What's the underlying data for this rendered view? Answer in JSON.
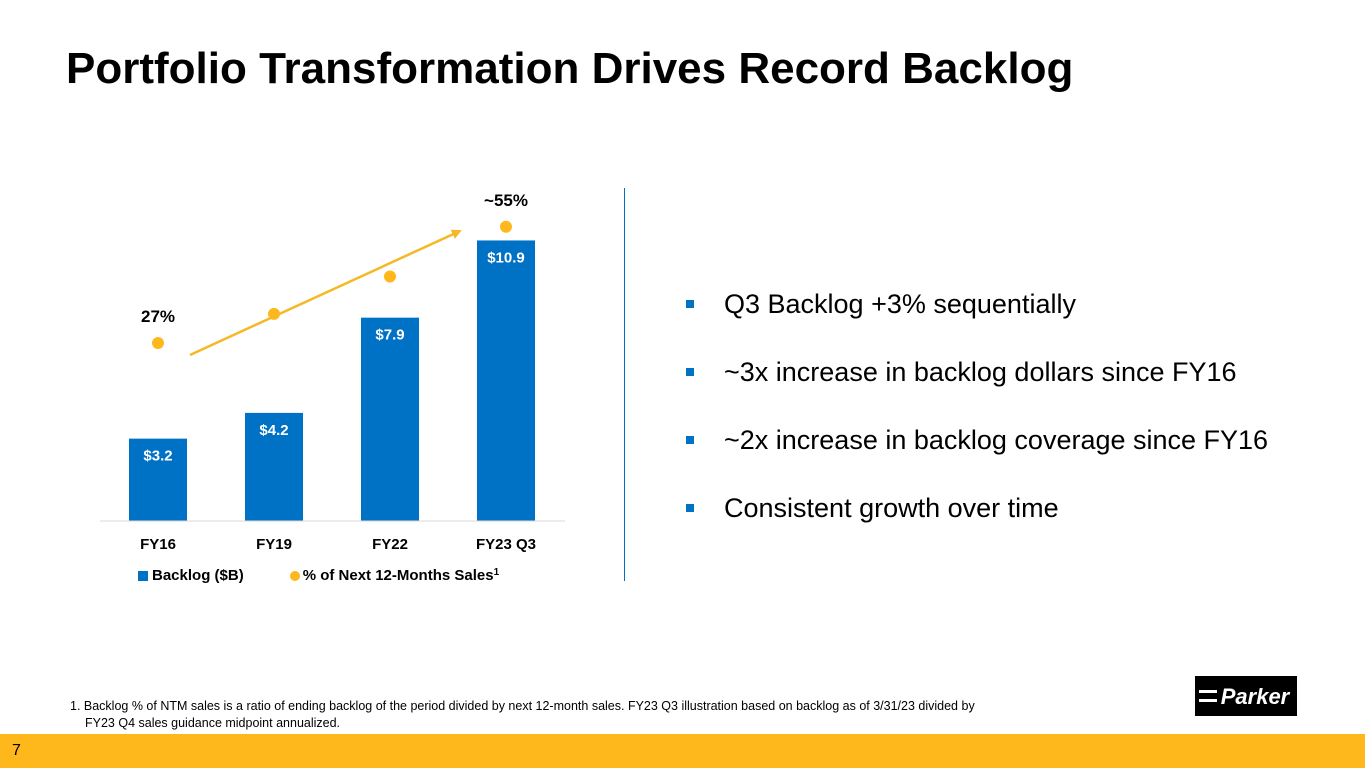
{
  "title": "Portfolio Transformation Drives Record Backlog",
  "chart_data": {
    "type": "bar",
    "categories": [
      "FY16",
      "FY19",
      "FY22",
      "FY23 Q3"
    ],
    "series": [
      {
        "name": "Backlog ($B)",
        "type": "bar",
        "values": [
          3.2,
          4.2,
          7.9,
          10.9
        ],
        "labels": [
          "$3.2",
          "$4.2",
          "$7.9",
          "$10.9"
        ]
      },
      {
        "name": "% of Next 12-Months Sales",
        "type": "scatter",
        "values": [
          27,
          34,
          43,
          55
        ]
      }
    ],
    "point_labels": {
      "first": "27%",
      "last": "~55%"
    },
    "annotations": [
      "27%",
      "~55%"
    ],
    "ylim": [
      0,
      11.5
    ],
    "pct_ylim": [
      0,
      100
    ],
    "colors": {
      "bar": "#0072c6",
      "dot": "#ffb81c",
      "arrow": "#f5b827"
    }
  },
  "legend": {
    "bar_label": "Backlog ($B)",
    "dot_label": "% of Next 12-Months Sales",
    "dot_superscript": "1"
  },
  "bullets": [
    "Q3 Backlog +3% sequentially",
    "~3x increase in backlog dollars since FY16",
    "~2x increase in backlog coverage since FY16",
    "Consistent growth over time"
  ],
  "footnote": {
    "line1": "1. Backlog % of NTM sales is a ratio of ending backlog of the period divided by next 12-month sales. FY23 Q3 illustration based on backlog as of 3/31/23 divided by",
    "line2": "FY23 Q4 sales guidance midpoint annualized."
  },
  "logo_text": "Parker",
  "page_number": "7",
  "colors": {
    "accent": "#0072c6",
    "brand_bar": "#ffb81c"
  }
}
